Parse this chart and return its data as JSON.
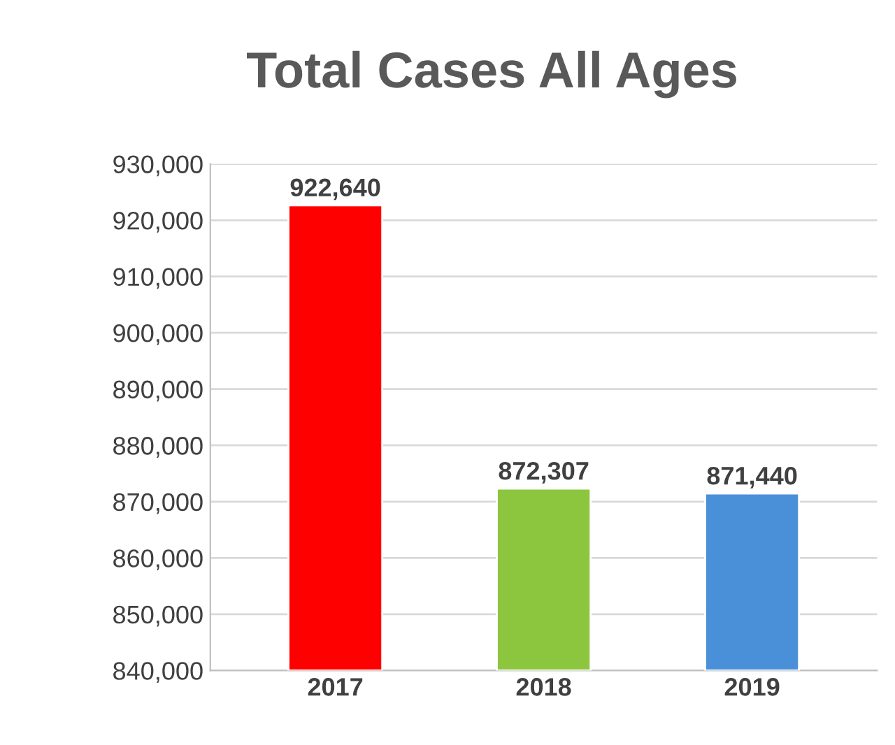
{
  "chart_data": {
    "type": "bar",
    "title": "Total Cases All Ages",
    "categories": [
      "2017",
      "2018",
      "2019"
    ],
    "values": [
      922640,
      872307,
      871440
    ],
    "colors": [
      "#ff0000",
      "#8cc63e",
      "#4a90d9"
    ],
    "value_labels": [
      "922,640",
      "872,307",
      "871,440"
    ],
    "ylim": [
      840000,
      930000
    ],
    "yticks": [
      {
        "value": 840000,
        "label": "840,000"
      },
      {
        "value": 850000,
        "label": "850,000"
      },
      {
        "value": 860000,
        "label": "860,000"
      },
      {
        "value": 870000,
        "label": "870,000"
      },
      {
        "value": 880000,
        "label": "880,000"
      },
      {
        "value": 890000,
        "label": "890,000"
      },
      {
        "value": 900000,
        "label": "900,000"
      },
      {
        "value": 910000,
        "label": "910,000"
      },
      {
        "value": 920000,
        "label": "920,000"
      },
      {
        "value": 930000,
        "label": "930,000"
      }
    ],
    "grid": "y"
  }
}
